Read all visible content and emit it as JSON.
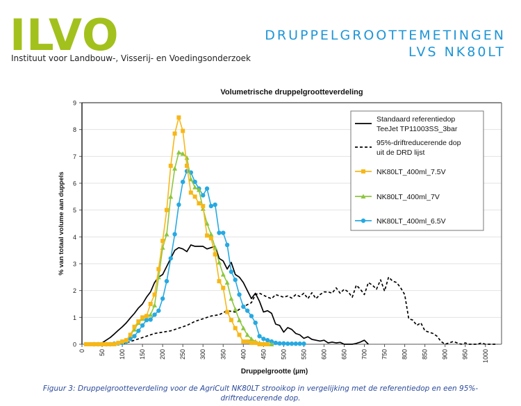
{
  "header": {
    "logo_text": "ILVO",
    "institute": "Instituut voor Landbouw-, Visserij- en Voedingsonderzoek",
    "title_line1": "DRUPPELGROOTTEMETINGEN",
    "title_line2": "LVS NK80LT",
    "logo_color": "#a3c11c",
    "title_color": "#1f95d6"
  },
  "caption": {
    "line1": "Figuur 3: Druppelgrootteverdeling voor de AgriCult NK80LT strooikop in vergelijking met de referentiedop en een 95%-",
    "line2": "driftreducerende dop."
  },
  "chart_data": {
    "type": "line",
    "title": "Volumetrische druppelgrootteverdeling",
    "xlabel": "Druppelgrootte (µm)",
    "ylabel": "% van totaal volume aan duppels",
    "xlim": [
      0,
      1040
    ],
    "ylim": [
      0,
      9
    ],
    "xticks": [
      0,
      50,
      100,
      150,
      200,
      250,
      300,
      350,
      400,
      450,
      500,
      550,
      600,
      650,
      700,
      750,
      800,
      850,
      900,
      950,
      1000
    ],
    "yticks": [
      0,
      1,
      2,
      3,
      4,
      5,
      6,
      7,
      8,
      9
    ],
    "grid": "horizontal",
    "legend_position": "top-right",
    "series": [
      {
        "name": "Standaard referentiedop TeeJet TP11003SS_3bar",
        "legend_lines": [
          "Standaard referentiedop",
          "TeeJet TP11003SS_3bar"
        ],
        "color": "#000000",
        "style": "solid",
        "marker": "none",
        "x": [
          40,
          50,
          60,
          70,
          80,
          90,
          100,
          110,
          120,
          130,
          140,
          150,
          160,
          170,
          180,
          190,
          200,
          210,
          220,
          230,
          240,
          250,
          260,
          270,
          280,
          290,
          300,
          310,
          320,
          330,
          340,
          350,
          360,
          370,
          380,
          390,
          400,
          410,
          420,
          430,
          440,
          450,
          460,
          470,
          480,
          490,
          500,
          510,
          520,
          530,
          540,
          550,
          560,
          570,
          580,
          590,
          600,
          610,
          620,
          630,
          640,
          650,
          660,
          670,
          680,
          690,
          700,
          710
        ],
        "y": [
          0,
          0.05,
          0.15,
          0.25,
          0.38,
          0.52,
          0.65,
          0.8,
          0.98,
          1.15,
          1.35,
          1.5,
          1.75,
          1.95,
          2.3,
          2.5,
          2.6,
          2.9,
          3.2,
          3.5,
          3.6,
          3.55,
          3.45,
          3.7,
          3.65,
          3.65,
          3.65,
          3.55,
          3.6,
          3.65,
          3.2,
          3.1,
          2.8,
          3.05,
          2.6,
          2.5,
          2.3,
          2.0,
          1.7,
          1.9,
          1.6,
          1.2,
          1.25,
          1.15,
          0.75,
          0.7,
          0.45,
          0.62,
          0.55,
          0.4,
          0.35,
          0.22,
          0.28,
          0.18,
          0.15,
          0.12,
          0.15,
          0.05,
          0.08,
          0.05,
          0.07,
          0.0,
          0.0,
          0.0,
          0.03,
          0.08,
          0.15,
          0.0
        ]
      },
      {
        "name": "95%-driftreducerende dop uit de DRD lijst",
        "legend_lines": [
          "95%-driftreducerende dop",
          "uit de DRD lijst"
        ],
        "color": "#000000",
        "style": "dashed",
        "marker": "none",
        "x": [
          100,
          120,
          140,
          160,
          180,
          200,
          220,
          240,
          260,
          280,
          300,
          320,
          340,
          360,
          380,
          400,
          420,
          430,
          440,
          460,
          470,
          480,
          500,
          510,
          520,
          530,
          540,
          550,
          560,
          570,
          580,
          590,
          600,
          610,
          620,
          630,
          640,
          650,
          660,
          670,
          680,
          690,
          700,
          710,
          720,
          730,
          740,
          750,
          760,
          770,
          780,
          790,
          800,
          810,
          820,
          830,
          840,
          850,
          860,
          870,
          880,
          890,
          900,
          910,
          920,
          930,
          940,
          950,
          960,
          970,
          980,
          990,
          1000,
          1010,
          1030
        ],
        "y": [
          0,
          0.1,
          0.2,
          0.3,
          0.4,
          0.45,
          0.5,
          0.6,
          0.7,
          0.85,
          0.95,
          1.05,
          1.1,
          1.25,
          1.2,
          1.4,
          1.55,
          1.85,
          1.9,
          1.75,
          1.7,
          1.85,
          1.75,
          1.8,
          1.72,
          1.85,
          1.78,
          1.9,
          1.7,
          1.92,
          1.7,
          1.85,
          1.95,
          1.95,
          1.9,
          2.1,
          1.9,
          2.05,
          1.95,
          1.75,
          2.2,
          2.05,
          1.85,
          2.3,
          2.2,
          2.05,
          2.4,
          1.98,
          2.5,
          2.35,
          2.3,
          2.1,
          1.85,
          0.95,
          0.9,
          0.7,
          0.8,
          0.5,
          0.45,
          0.4,
          0.3,
          0.1,
          0.0,
          0.05,
          0.1,
          0.05,
          0.0,
          0.05,
          0.0,
          0.0,
          0.0,
          0.05,
          0.0,
          0.0,
          0.0
        ]
      },
      {
        "name": "NK80LT_400ml_7.5V",
        "color": "#f7b718",
        "style": "solid",
        "marker": "square",
        "x": [
          10,
          20,
          30,
          40,
          50,
          60,
          70,
          80,
          90,
          100,
          110,
          120,
          130,
          140,
          150,
          160,
          170,
          180,
          190,
          200,
          210,
          220,
          230,
          240,
          250,
          260,
          270,
          280,
          290,
          300,
          310,
          320,
          330,
          340,
          350,
          360,
          370,
          380,
          390,
          400,
          410,
          420,
          430,
          440,
          450,
          460
        ],
        "y": [
          0,
          0,
          0,
          0,
          0,
          0,
          0,
          0,
          0.05,
          0.1,
          0.15,
          0.35,
          0.65,
          0.85,
          1.0,
          1.05,
          1.5,
          1.85,
          2.8,
          3.85,
          5.0,
          6.65,
          7.85,
          8.45,
          7.95,
          6.65,
          5.65,
          5.5,
          5.25,
          5.15,
          4.05,
          3.95,
          3.35,
          2.35,
          2.1,
          1.2,
          0.9,
          0.6,
          0.35,
          0.1,
          0.1,
          0.05,
          0.05,
          0,
          0,
          0
        ]
      },
      {
        "name": "NK80LT_400ml_7V",
        "color": "#8dc63f",
        "style": "solid",
        "marker": "triangle",
        "x": [
          30,
          40,
          50,
          60,
          70,
          80,
          90,
          100,
          110,
          120,
          130,
          140,
          150,
          160,
          170,
          180,
          190,
          200,
          210,
          220,
          230,
          240,
          250,
          260,
          270,
          280,
          290,
          300,
          310,
          320,
          330,
          340,
          350,
          360,
          370,
          380,
          390,
          400,
          410,
          420,
          430,
          440,
          450,
          460,
          470
        ],
        "y": [
          0,
          0,
          0,
          0,
          0,
          0.02,
          0.05,
          0.1,
          0.15,
          0.35,
          0.55,
          0.8,
          0.95,
          1.05,
          1.1,
          1.45,
          2.5,
          3.6,
          4.1,
          5.5,
          6.55,
          7.15,
          7.1,
          6.95,
          6.15,
          5.85,
          5.75,
          5.05,
          4.5,
          4.1,
          3.6,
          3.05,
          2.6,
          2.3,
          1.7,
          1.3,
          0.9,
          0.6,
          0.35,
          0.2,
          0.1,
          0.05,
          0.02,
          0,
          0
        ]
      },
      {
        "name": "NK80LT_400ml_6.5V",
        "color": "#27a9e1",
        "style": "solid",
        "marker": "circle",
        "x": [
          30,
          40,
          50,
          60,
          70,
          80,
          90,
          100,
          110,
          120,
          130,
          140,
          150,
          160,
          170,
          180,
          190,
          200,
          210,
          220,
          230,
          240,
          250,
          260,
          270,
          280,
          290,
          300,
          310,
          320,
          330,
          340,
          350,
          360,
          370,
          380,
          390,
          400,
          410,
          420,
          430,
          440,
          450,
          460,
          470,
          480,
          490,
          500,
          510,
          520,
          530,
          540,
          550
        ],
        "y": [
          0,
          0,
          0,
          0,
          0,
          0.02,
          0.03,
          0.05,
          0.1,
          0.2,
          0.3,
          0.5,
          0.7,
          0.9,
          0.92,
          1.1,
          1.25,
          1.7,
          2.35,
          3.2,
          4.1,
          5.2,
          6.05,
          6.45,
          6.4,
          6.05,
          5.8,
          5.55,
          5.8,
          5.15,
          5.2,
          4.15,
          4.15,
          3.7,
          2.7,
          2.4,
          1.85,
          1.4,
          1.25,
          1.05,
          0.8,
          0.3,
          0.2,
          0.15,
          0.1,
          0.05,
          0.03,
          0.03,
          0.02,
          0.02,
          0.02,
          0.02,
          0.02
        ]
      }
    ]
  }
}
